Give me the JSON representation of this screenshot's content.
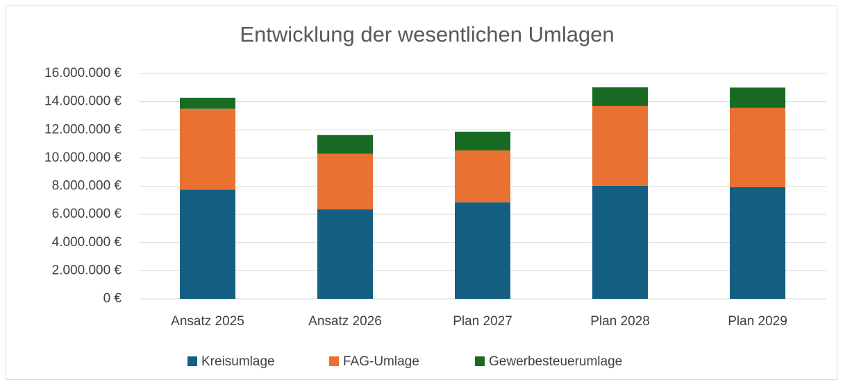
{
  "chart_data": {
    "type": "bar",
    "stacked": true,
    "title": "Entwicklung der wesentlichen Umlagen",
    "categories": [
      "Ansatz 2025",
      "Ansatz 2026",
      "Plan 2027",
      "Plan 2028",
      "Plan 2029"
    ],
    "series": [
      {
        "name": "Kreisumlage",
        "color": "#156082",
        "values": [
          7750000,
          6350000,
          6850000,
          8030000,
          7930000
        ]
      },
      {
        "name": "FAG-Umlage",
        "color": "#e97132",
        "values": [
          5750000,
          3950000,
          3690000,
          5660000,
          5620000
        ]
      },
      {
        "name": "Gewerbesteuerumlage",
        "color": "#196b24",
        "values": [
          780000,
          1330000,
          1330000,
          1330000,
          1450000
        ]
      }
    ],
    "ylim": [
      0,
      16000000
    ],
    "yticks": [
      {
        "value": 0,
        "label": "0 €"
      },
      {
        "value": 2000000,
        "label": "2.000.000 €"
      },
      {
        "value": 4000000,
        "label": "4.000.000 €"
      },
      {
        "value": 6000000,
        "label": "6.000.000 €"
      },
      {
        "value": 8000000,
        "label": "8.000.000 €"
      },
      {
        "value": 10000000,
        "label": "10.000.000 €"
      },
      {
        "value": 12000000,
        "label": "12.000.000 €"
      },
      {
        "value": 14000000,
        "label": "14.000.000 €"
      },
      {
        "value": 16000000,
        "label": "16.000.000 €"
      }
    ],
    "grid": true,
    "legend": "bottom"
  }
}
